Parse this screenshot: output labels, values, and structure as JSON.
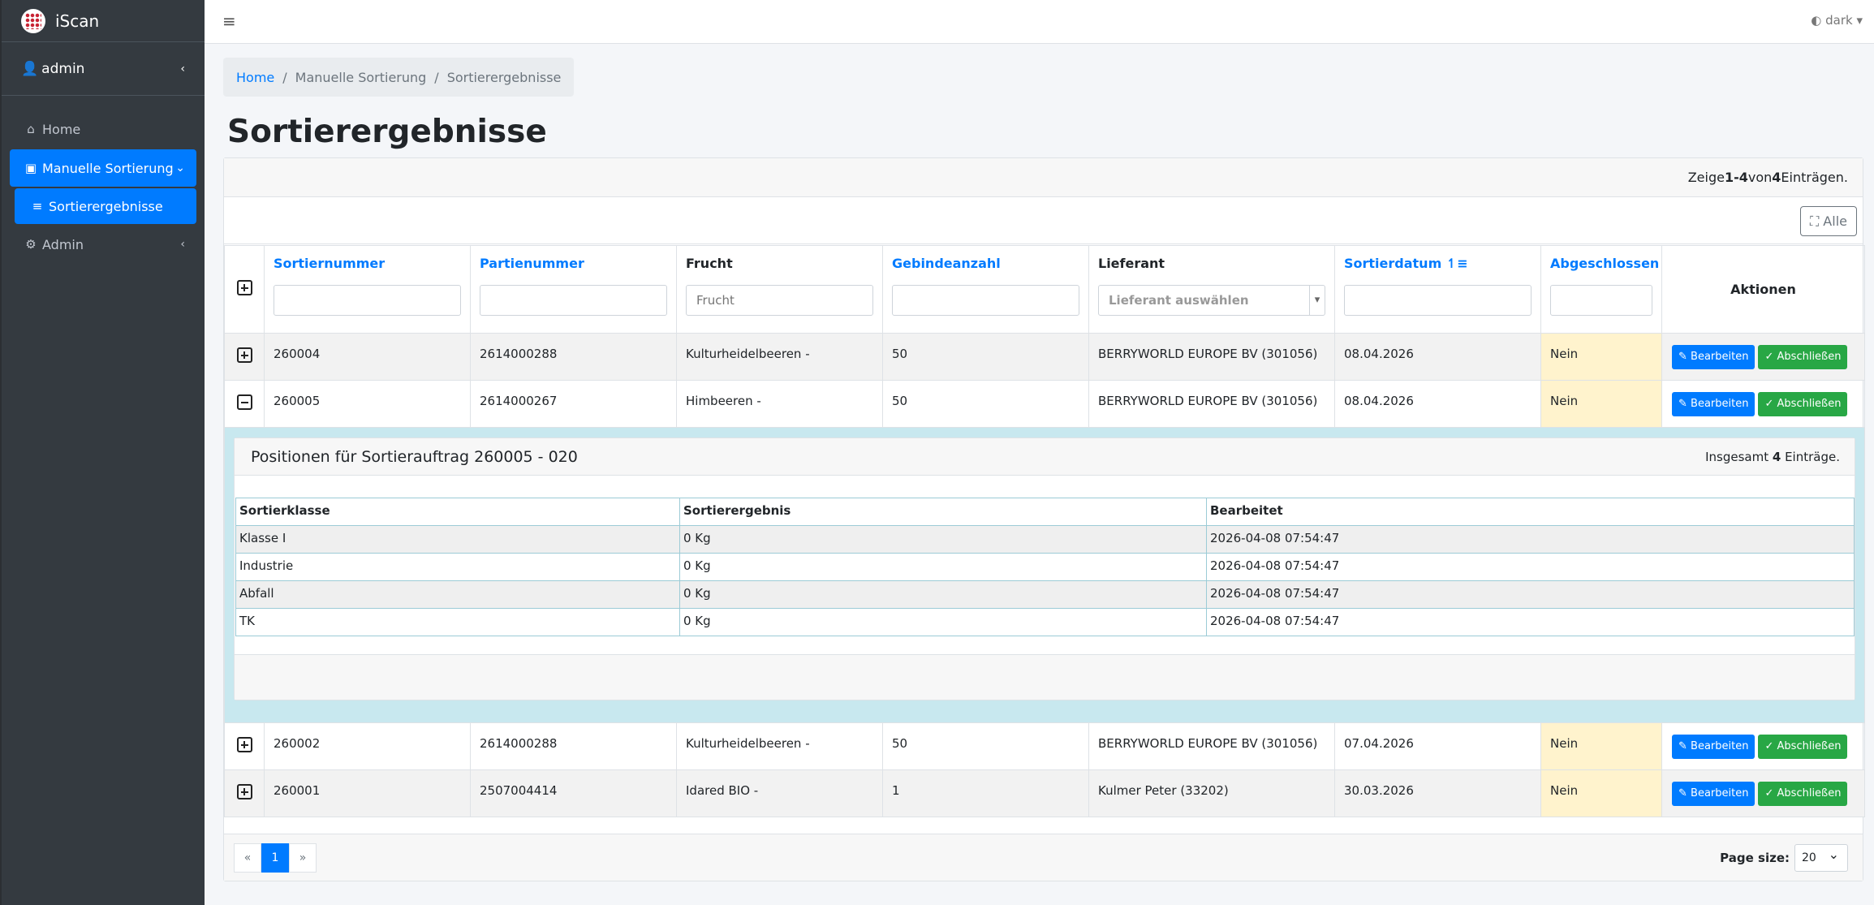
{
  "brand": {
    "name": "iScan"
  },
  "user": {
    "name": "admin"
  },
  "sidebar": {
    "items": [
      {
        "label": "Home",
        "icon": "home-icon"
      },
      {
        "label": "Manuelle Sortierung",
        "icon": "basket-icon"
      },
      {
        "label": "Sortierergebnisse",
        "icon": "list-icon"
      },
      {
        "label": "Admin",
        "icon": "gear-icon"
      }
    ]
  },
  "topbar": {
    "theme": "dark"
  },
  "breadcrumb": {
    "home": "Home",
    "mid": "Manuelle Sortierung",
    "current": "Sortierergebnisse"
  },
  "page": {
    "title": "Sortierergebnisse"
  },
  "summary": {
    "pre": "Zeige ",
    "range": "1-4",
    "mid": " von ",
    "total": "4",
    "post": " Einträgen."
  },
  "toolbar": {
    "all_label": "Alle"
  },
  "columns": {
    "sortiernummer": "Sortiernummer",
    "partienummer": "Partienummer",
    "frucht": "Frucht",
    "gebindeanzahl": "Gebindeanzahl",
    "lieferant": "Lieferant",
    "sortierdatum": "Sortierdatum",
    "abgeschlossen": "Abgeschlossen",
    "aktionen": "Aktionen"
  },
  "filters": {
    "frucht_placeholder": "Frucht",
    "lieferant_placeholder": "Lieferant auswählen"
  },
  "actions": {
    "edit": "Bearbeiten",
    "close": "Abschließen"
  },
  "rows": [
    {
      "sortiernummer": "260004",
      "partienummer": "2614000288",
      "frucht": "Kulturheidelbeeren -",
      "gebindeanzahl": "50",
      "lieferant": "BERRYWORLD EUROPE BV (301056)",
      "sortierdatum": "08.04.2026",
      "abgeschlossen": "Nein"
    },
    {
      "sortiernummer": "260005",
      "partienummer": "2614000267",
      "frucht": "Himbeeren -",
      "gebindeanzahl": "50",
      "lieferant": "BERRYWORLD EUROPE BV (301056)",
      "sortierdatum": "08.04.2026",
      "abgeschlossen": "Nein"
    },
    {
      "sortiernummer": "260002",
      "partienummer": "2614000288",
      "frucht": "Kulturheidelbeeren -",
      "gebindeanzahl": "50",
      "lieferant": "BERRYWORLD EUROPE BV (301056)",
      "sortierdatum": "07.04.2026",
      "abgeschlossen": "Nein"
    },
    {
      "sortiernummer": "260001",
      "partienummer": "2507004414",
      "frucht": "Idared BIO -",
      "gebindeanzahl": "1",
      "lieferant": "Kulmer Peter (33202)",
      "sortierdatum": "30.03.2026",
      "abgeschlossen": "Nein"
    }
  ],
  "detail": {
    "title": "Positionen für Sortierauftrag 260005 - 020",
    "summary_pre": "Insgesamt ",
    "summary_count": "4",
    "summary_post": " Einträge.",
    "columns": {
      "klasse": "Sortierklasse",
      "ergebnis": "Sortierergebnis",
      "bearbeitet": "Bearbeitet"
    },
    "rows": [
      {
        "klasse": "Klasse I",
        "ergebnis": "0 Kg",
        "bearbeitet": "2026-04-08 07:54:47"
      },
      {
        "klasse": "Industrie",
        "ergebnis": "0 Kg",
        "bearbeitet": "2026-04-08 07:54:47"
      },
      {
        "klasse": "Abfall",
        "ergebnis": "0 Kg",
        "bearbeitet": "2026-04-08 07:54:47"
      },
      {
        "klasse": "TK",
        "ergebnis": "0 Kg",
        "bearbeitet": "2026-04-08 07:54:47"
      }
    ]
  },
  "pagination": {
    "prev": "«",
    "current": "1",
    "next": "»"
  },
  "pagesize": {
    "label": "Page size:",
    "value": "20"
  }
}
